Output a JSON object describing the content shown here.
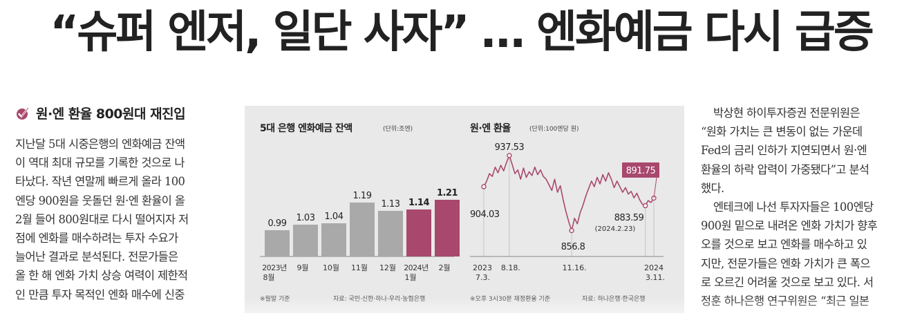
{
  "headline": "“슈퍼 엔저, 일단 사자” … 엔화예금 다시 급증",
  "left_column": {
    "subhead": "원·엔 환율 800원대 재진입",
    "lines": [
      "지난달 5대 시중은행의 엔화예금 잔액",
      "이 역대 최대 규모를 기록한 것으로 나",
      "타났다. 작년 연말께 빠르게 올라 100",
      "엔당 900원을 웃돌던 원·엔 환율이 올",
      "2월 들어 800원대로 다시 떨어지자 저",
      "점에 엔화를 매수하려는 투자 수요가",
      "늘어난 결과로 분석된다. 전문가들은",
      "올 한 해 엔화 가치 상승 여력이 제한적",
      "인 만큼 투자 목적인 엔화 매수에 신중"
    ]
  },
  "right_column": {
    "lines": [
      "박상현 하이투자증권 전문위원은",
      "“원화 가치는 큰 변동이 없는 가운데",
      "Fed의 금리 인하가 지연되면서 원·엔",
      "환율의 하락 압력이 가중됐다”고 분석",
      "했다.",
      "엔테크에 나선 투자자들은 100엔당",
      "900원 밑으로 내려온 엔화 가치가 향후",
      "오를 것으로 보고 엔화를 매수하고 있",
      "지만, 전문가들은 엔화 가치가 큰 폭으",
      "로 오르긴 어려울 것으로 보고 있다. 서",
      "정훈 하나은행 연구위원은 “최근 일본"
    ]
  },
  "chart_data": [
    {
      "type": "bar",
      "title": "5대 은행 엔화예금 잔액",
      "unit": "(단위:조엔)",
      "categories": [
        "2023년 8월",
        "9월",
        "10월",
        "11월",
        "12월",
        "2024년 1월",
        "2월"
      ],
      "values": [
        0.99,
        1.03,
        1.04,
        1.19,
        1.13,
        1.14,
        1.21
      ],
      "highlight": [
        false,
        false,
        false,
        false,
        false,
        true,
        true
      ],
      "note": "※월말 기준",
      "source": "자료: 국민·신한·하나·우리·농협은행",
      "colors": {
        "normal": "#a9a9a9",
        "highlight": "#a8486d"
      }
    },
    {
      "type": "line",
      "title": "원·엔 환율",
      "unit": "(단위:100엔당 원)",
      "x_ticks": [
        "2023 7.3.",
        "8.18.",
        "11.16.",
        "2024 3.11."
      ],
      "annotations": [
        {
          "label": "904.03",
          "value": 904.03,
          "x": "2023 7.3."
        },
        {
          "label": "937.53",
          "value": 937.53,
          "x": "8.18."
        },
        {
          "label": "856.8",
          "value": 856.8,
          "x": "11.16."
        },
        {
          "label": "883.59",
          "value": 883.59,
          "x": "2024.2.23"
        },
        {
          "label": "891.75",
          "value": 891.75,
          "x": "2024 3.11."
        }
      ],
      "sublabel": "(2024.2.23)",
      "note": "※오후 3시30분 재정환율 기준",
      "source": "자료: 하나은행·한국은행",
      "series": [
        {
          "values": [
            904.03,
            910,
            918,
            915,
            925,
            919,
            927,
            921,
            930,
            937.53,
            928,
            918,
            922,
            912,
            924,
            914,
            920,
            916,
            925,
            917,
            922,
            915,
            912,
            906,
            900,
            912,
            898,
            905,
            890,
            877,
            866,
            856.8,
            870,
            864,
            876,
            884,
            894,
            902,
            910,
            904,
            914,
            907,
            917,
            910,
            919,
            912,
            903,
            910,
            904,
            898,
            903,
            896,
            899,
            892,
            897,
            890,
            885,
            883.59,
            889,
            887,
            891.75
          ]
        }
      ],
      "color": "#a8486d",
      "ylim": [
        840,
        960
      ]
    }
  ]
}
